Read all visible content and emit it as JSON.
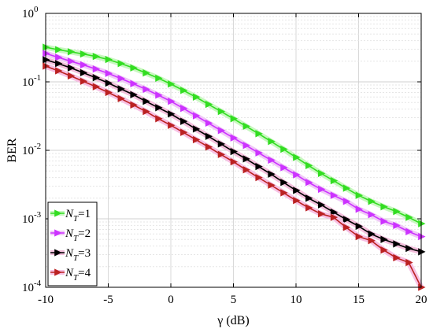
{
  "chart_data": {
    "type": "line",
    "title": "",
    "xlabel": "γ (dB)",
    "ylabel": "BER",
    "xlim": [
      -10,
      20
    ],
    "ylim": [
      0.0001,
      1
    ],
    "yscale": "log",
    "grid": true,
    "legend_position": "bottom-left",
    "x_ticks": [
      -10,
      -5,
      0,
      5,
      10,
      15,
      20
    ],
    "x_tick_labels": [
      "-10",
      "-5",
      "0",
      "5",
      "10",
      "15",
      "20"
    ],
    "y_ticks": [
      0.0001,
      0.001,
      0.01,
      0.1,
      1
    ],
    "y_tick_labels": [
      {
        "base": "10",
        "exp": "-4"
      },
      {
        "base": "10",
        "exp": "-3"
      },
      {
        "base": "10",
        "exp": "-2"
      },
      {
        "base": "10",
        "exp": "-1"
      },
      {
        "base": "10",
        "exp": "0"
      }
    ],
    "x": [
      -10,
      -9,
      -8,
      -7,
      -6,
      -5,
      -4,
      -3,
      -2,
      -1,
      0,
      1,
      2,
      3,
      4,
      5,
      6,
      7,
      8,
      9,
      10,
      11,
      12,
      13,
      14,
      15,
      16,
      17,
      18,
      19,
      20
    ],
    "series": [
      {
        "name": "NT=1",
        "label_main": "N",
        "label_sub": "T",
        "label_suffix": "=1",
        "color": "#33dd22",
        "glow": "#c8f7c0",
        "values": [
          0.32,
          0.295,
          0.275,
          0.255,
          0.235,
          0.212,
          0.185,
          0.16,
          0.135,
          0.113,
          0.093,
          0.075,
          0.06,
          0.047,
          0.037,
          0.029,
          0.0225,
          0.0175,
          0.0135,
          0.0104,
          0.0079,
          0.006,
          0.0046,
          0.0036,
          0.0028,
          0.0022,
          0.0018,
          0.0015,
          0.00128,
          0.00105,
          0.00085
        ]
      },
      {
        "name": "NT=2",
        "label_main": "N",
        "label_sub": "T",
        "label_suffix": "=2",
        "color": "#cc33ff",
        "glow": "#f0c8f7",
        "values": [
          0.26,
          0.228,
          0.2,
          0.177,
          0.154,
          0.133,
          0.112,
          0.094,
          0.078,
          0.064,
          0.052,
          0.041,
          0.032,
          0.025,
          0.0195,
          0.0152,
          0.0118,
          0.0092,
          0.0072,
          0.0056,
          0.0044,
          0.0034,
          0.0027,
          0.0022,
          0.0018,
          0.00138,
          0.00115,
          0.00092,
          0.0008,
          0.00065,
          0.00055
        ]
      },
      {
        "name": "NT=3",
        "label_main": "N",
        "label_sub": "T",
        "label_suffix": "=3",
        "color": "#000000",
        "glow": "#f3c0dc",
        "values": [
          0.21,
          0.185,
          0.16,
          0.136,
          0.115,
          0.096,
          0.079,
          0.065,
          0.052,
          0.042,
          0.034,
          0.0265,
          0.0205,
          0.016,
          0.0124,
          0.0096,
          0.0075,
          0.0058,
          0.0045,
          0.0034,
          0.0026,
          0.002,
          0.0016,
          0.00125,
          0.00098,
          0.00078,
          0.0006,
          0.0005,
          0.00043,
          0.00037,
          0.00033
        ]
      },
      {
        "name": "NT=4",
        "label_main": "N",
        "label_sub": "T",
        "label_suffix": "=4",
        "color": "#bb2222",
        "glow": "#f7c0e4",
        "values": [
          0.17,
          0.145,
          0.122,
          0.102,
          0.085,
          0.07,
          0.057,
          0.046,
          0.037,
          0.029,
          0.0232,
          0.0183,
          0.0143,
          0.0112,
          0.0087,
          0.0068,
          0.0052,
          0.004,
          0.0031,
          0.0024,
          0.00185,
          0.00145,
          0.00118,
          0.00105,
          0.00075,
          0.00055,
          0.00048,
          0.00035,
          0.00027,
          0.00023,
          0.0001
        ]
      }
    ]
  }
}
